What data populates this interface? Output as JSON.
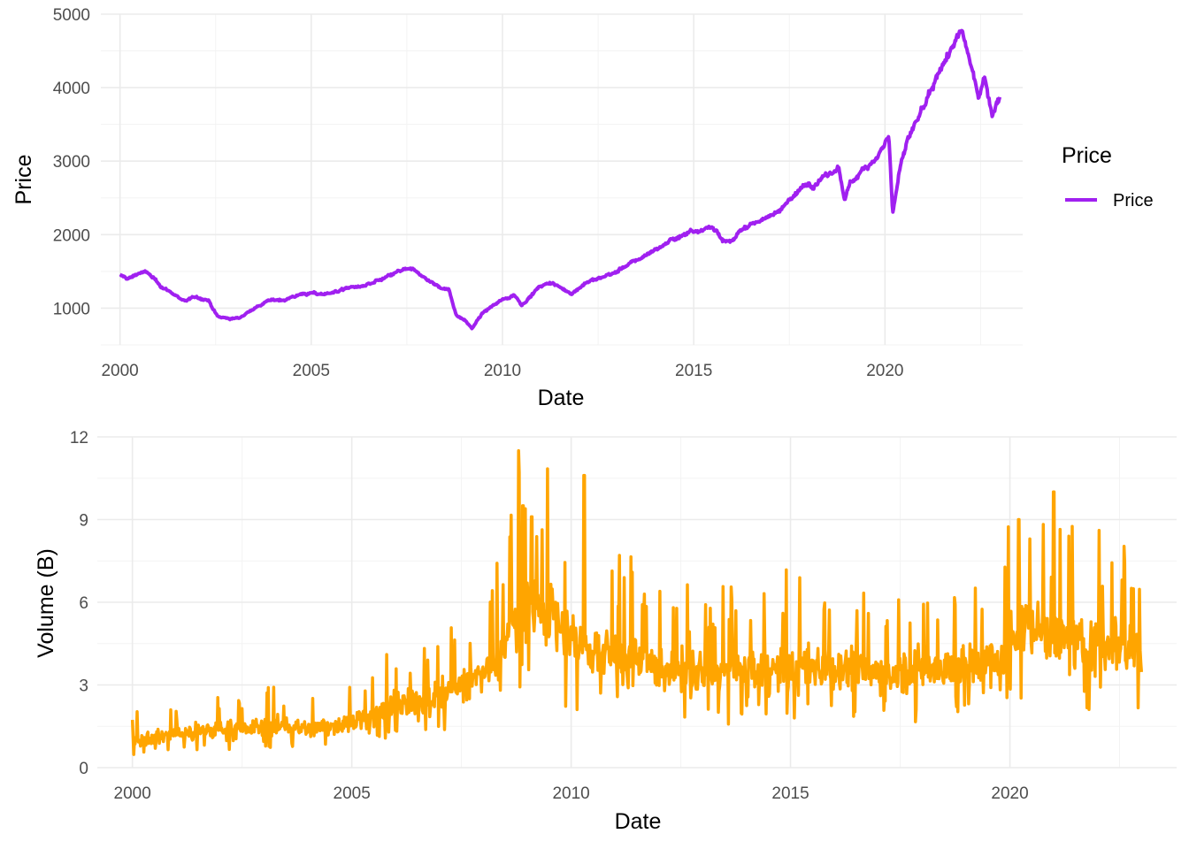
{
  "chart_data": [
    {
      "type": "line",
      "xlabel": "Date",
      "ylabel": "Price",
      "xlim": [
        1999.5,
        2023.6
      ],
      "ylim": [
        500,
        5000
      ],
      "x_ticks": [
        2000,
        2005,
        2010,
        2015,
        2020
      ],
      "x_tick_labels": [
        "2000",
        "2005",
        "2010",
        "2015",
        "2020"
      ],
      "y_ticks": [
        1000,
        2000,
        3000,
        4000,
        5000
      ],
      "y_tick_labels": [
        "1000",
        "2000",
        "3000",
        "4000",
        "5000"
      ],
      "grid": true,
      "legend": {
        "title": "Price",
        "position": "right",
        "entries": [
          "Price"
        ]
      },
      "color": "#a020f0",
      "series": [
        {
          "name": "Price",
          "x": [
            2000.0,
            2000.2,
            2000.5,
            2000.7,
            2001.0,
            2001.3,
            2001.7,
            2002.0,
            2002.3,
            2002.55,
            2002.8,
            2003.1,
            2003.5,
            2003.9,
            2004.3,
            2004.8,
            2005.2,
            2005.6,
            2006.0,
            2006.4,
            2006.9,
            2007.3,
            2007.6,
            2007.8,
            2008.0,
            2008.3,
            2008.6,
            2008.8,
            2009.0,
            2009.2,
            2009.5,
            2010.0,
            2010.3,
            2010.5,
            2011.0,
            2011.3,
            2011.6,
            2011.8,
            2012.2,
            2012.5,
            2013.0,
            2013.5,
            2014.0,
            2014.5,
            2015.0,
            2015.4,
            2015.6,
            2015.7,
            2016.0,
            2016.2,
            2016.5,
            2017.0,
            2017.5,
            2018.0,
            2018.1,
            2018.5,
            2018.8,
            2018.95,
            2019.1,
            2019.5,
            2019.8,
            2020.0,
            2020.1,
            2020.2,
            2020.4,
            2020.6,
            2020.9,
            2021.2,
            2021.5,
            2021.8,
            2022.0,
            2022.2,
            2022.45,
            2022.6,
            2022.8,
            2023.0
          ],
          "y": [
            1450,
            1400,
            1480,
            1490,
            1330,
            1220,
            1100,
            1150,
            1110,
            880,
            860,
            860,
            1000,
            1100,
            1120,
            1200,
            1190,
            1220,
            1280,
            1300,
            1400,
            1500,
            1530,
            1480,
            1400,
            1300,
            1250,
            900,
            850,
            730,
            940,
            1120,
            1180,
            1050,
            1300,
            1340,
            1250,
            1200,
            1350,
            1400,
            1500,
            1650,
            1800,
            1950,
            2060,
            2100,
            2080,
            1920,
            1900,
            2050,
            2150,
            2250,
            2450,
            2750,
            2650,
            2800,
            2900,
            2450,
            2700,
            2950,
            3050,
            3250,
            3350,
            2300,
            2900,
            3300,
            3600,
            3900,
            4300,
            4600,
            4750,
            4400,
            3900,
            4150,
            3650,
            3900
          ]
        }
      ]
    },
    {
      "type": "line",
      "xlabel": "Date",
      "ylabel": "Volume (B)",
      "xlim": [
        1999.2,
        2023.8
      ],
      "ylim": [
        0,
        12
      ],
      "x_ticks": [
        2000,
        2005,
        2010,
        2015,
        2020
      ],
      "x_tick_labels": [
        "2000",
        "2005",
        "2010",
        "2015",
        "2020"
      ],
      "y_ticks": [
        0,
        3,
        6,
        9,
        12
      ],
      "y_tick_labels": [
        "0",
        "3",
        "6",
        "9",
        "12"
      ],
      "grid": true,
      "color": "#ffa500",
      "series": [
        {
          "x": [
            2000.0,
            2000.5,
            2001.0,
            2001.5,
            2002.0,
            2002.5,
            2003.0,
            2003.5,
            2004.0,
            2004.5,
            2005.0,
            2005.5,
            2006.0,
            2006.5,
            2007.0,
            2007.5,
            2008.0,
            2008.5,
            2008.8,
            2009.0,
            2009.3,
            2009.6,
            2010.0,
            2010.3,
            2010.6,
            2011.0,
            2011.5,
            2012.0,
            2013.0,
            2014.0,
            2015.0,
            2016.0,
            2017.0,
            2018.0,
            2019.0,
            2019.8,
            2020.2,
            2020.5,
            2021.0,
            2021.5,
            2022.0,
            2022.5,
            2023.0
          ],
          "y": [
            1.0,
            1.1,
            1.2,
            1.3,
            1.4,
            1.4,
            1.5,
            1.5,
            1.4,
            1.5,
            1.7,
            1.9,
            2.2,
            2.3,
            2.6,
            3.0,
            3.4,
            4.2,
            5.8,
            6.0,
            5.8,
            5.5,
            4.6,
            4.3,
            4.2,
            4.0,
            3.8,
            3.6,
            3.4,
            3.5,
            3.6,
            3.7,
            3.4,
            3.6,
            3.7,
            3.8,
            5.4,
            5.0,
            4.8,
            4.4,
            4.5,
            4.6,
            4.2
          ],
          "peaks_x": [
            2008.8,
            2010.3,
            2020.2,
            2021.0,
            2009.1,
            2008.9
          ],
          "peaks_y": [
            11.5,
            10.6,
            9.0,
            10.0,
            9.1,
            9.5
          ]
        }
      ]
    }
  ]
}
